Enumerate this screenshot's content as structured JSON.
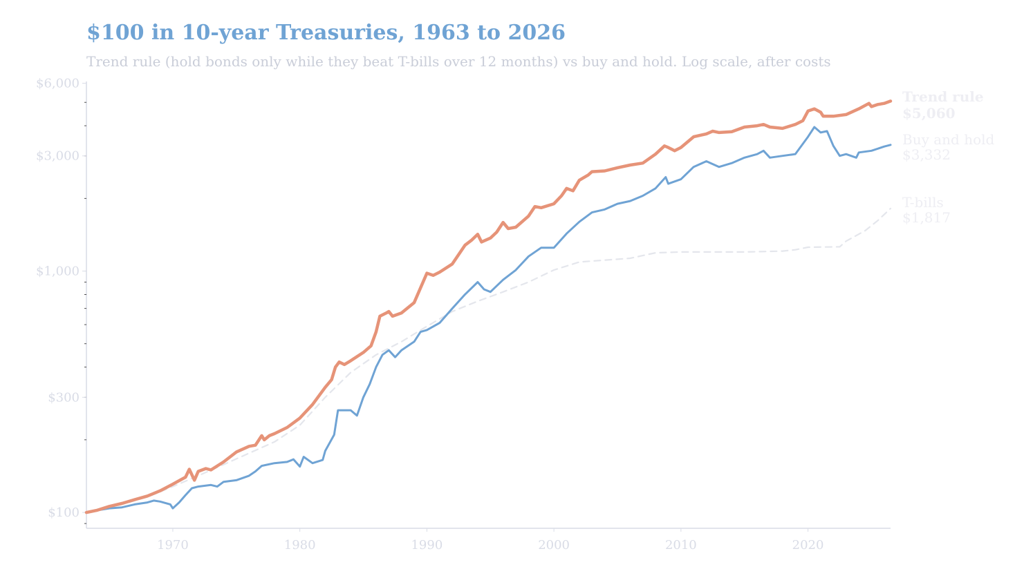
{
  "header": {
    "title": "$100 in 10-year Treasuries, 1963 to 2026",
    "subtitle": "Trend rule (hold bonds only while they beat T-bills over 12 months) vs buy and hold. Log scale, after costs"
  },
  "colors": {
    "trend": "#e69378",
    "buyhold": "#6fa3d4",
    "tbills": "#e4e6ec",
    "axis": "#d9dce6"
  },
  "chart_data": {
    "type": "line",
    "title": "$100 in 10-year Treasuries, 1963 to 2026",
    "subtitle": "Trend rule (hold bonds only while they beat T-bills over 12 months) vs buy and hold. Log scale, after costs",
    "xlim": [
      1963.2,
      2026.5
    ],
    "ylim": [
      86,
      6100
    ],
    "yscale": "log",
    "xticks": [
      {
        "value": 1970,
        "label": "1970"
      },
      {
        "value": 1980,
        "label": "1980"
      },
      {
        "value": 1990,
        "label": "1990"
      },
      {
        "value": 2000,
        "label": "2000"
      },
      {
        "value": 2010,
        "label": "2010"
      },
      {
        "value": 2020,
        "label": "2020"
      }
    ],
    "yticks": [
      {
        "value": 100,
        "label": "$100"
      },
      {
        "value": 300,
        "label": "$300"
      },
      {
        "value": 1000,
        "label": "$1,000"
      },
      {
        "value": 3000,
        "label": "$3,000"
      },
      {
        "value": 6000,
        "label": "$6,000"
      }
    ],
    "grid": false,
    "legend": "end-labels-right",
    "series": [
      {
        "key": "trend",
        "name": "Trend rule",
        "end_label": "$5,060",
        "points": [
          [
            1963.2,
            100
          ],
          [
            1964,
            102
          ],
          [
            1965,
            106
          ],
          [
            1966,
            109
          ],
          [
            1967,
            113
          ],
          [
            1968,
            117
          ],
          [
            1969,
            123
          ],
          [
            1970,
            131
          ],
          [
            1971,
            140
          ],
          [
            1971.3,
            151
          ],
          [
            1971.7,
            136
          ],
          [
            1972,
            148
          ],
          [
            1972.6,
            152
          ],
          [
            1973,
            150
          ],
          [
            1974,
            162
          ],
          [
            1975,
            178
          ],
          [
            1976,
            188
          ],
          [
            1976.5,
            190
          ],
          [
            1977,
            208
          ],
          [
            1977.2,
            200
          ],
          [
            1977.6,
            208
          ],
          [
            1978,
            212
          ],
          [
            1979,
            225
          ],
          [
            1980,
            246
          ],
          [
            1981,
            280
          ],
          [
            1982,
            330
          ],
          [
            1982.5,
            355
          ],
          [
            1982.8,
            400
          ],
          [
            1983.1,
            420
          ],
          [
            1983.5,
            410
          ],
          [
            1984,
            425
          ],
          [
            1985,
            460
          ],
          [
            1985.6,
            490
          ],
          [
            1986,
            560
          ],
          [
            1986.3,
            650
          ],
          [
            1986.8,
            670
          ],
          [
            1987,
            680
          ],
          [
            1987.3,
            650
          ],
          [
            1988,
            670
          ],
          [
            1989,
            740
          ],
          [
            1990,
            980
          ],
          [
            1990.5,
            960
          ],
          [
            1991,
            990
          ],
          [
            1992,
            1070
          ],
          [
            1993,
            1280
          ],
          [
            1993.5,
            1340
          ],
          [
            1994,
            1420
          ],
          [
            1994.3,
            1320
          ],
          [
            1995,
            1370
          ],
          [
            1995.5,
            1450
          ],
          [
            1996,
            1590
          ],
          [
            1996.4,
            1500
          ],
          [
            1997,
            1520
          ],
          [
            1998,
            1690
          ],
          [
            1998.5,
            1850
          ],
          [
            1999,
            1830
          ],
          [
            2000,
            1900
          ],
          [
            2000.6,
            2050
          ],
          [
            2001,
            2200
          ],
          [
            2001.5,
            2150
          ],
          [
            2002,
            2380
          ],
          [
            2002.7,
            2500
          ],
          [
            2003,
            2580
          ],
          [
            2004,
            2600
          ],
          [
            2005,
            2680
          ],
          [
            2006,
            2750
          ],
          [
            2007,
            2800
          ],
          [
            2008,
            3050
          ],
          [
            2008.7,
            3300
          ],
          [
            2009,
            3250
          ],
          [
            2009.5,
            3150
          ],
          [
            2010,
            3250
          ],
          [
            2011,
            3600
          ],
          [
            2012,
            3700
          ],
          [
            2012.5,
            3800
          ],
          [
            2013,
            3750
          ],
          [
            2014,
            3780
          ],
          [
            2015,
            3950
          ],
          [
            2016,
            4000
          ],
          [
            2016.5,
            4050
          ],
          [
            2017,
            3950
          ],
          [
            2018,
            3900
          ],
          [
            2019,
            4050
          ],
          [
            2019.6,
            4200
          ],
          [
            2020,
            4600
          ],
          [
            2020.5,
            4700
          ],
          [
            2021,
            4550
          ],
          [
            2021.2,
            4380
          ],
          [
            2022,
            4380
          ],
          [
            2023,
            4450
          ],
          [
            2024,
            4700
          ],
          [
            2024.8,
            4950
          ],
          [
            2025,
            4800
          ],
          [
            2025.5,
            4900
          ],
          [
            2026,
            4950
          ],
          [
            2026.5,
            5060
          ]
        ]
      },
      {
        "key": "buyhold",
        "name": "Buy and hold",
        "end_label": "$3,332",
        "points": [
          [
            1963.2,
            100
          ],
          [
            1964,
            102
          ],
          [
            1965,
            104
          ],
          [
            1966,
            105
          ],
          [
            1967,
            108
          ],
          [
            1968,
            110
          ],
          [
            1968.5,
            112
          ],
          [
            1969,
            111
          ],
          [
            1969.8,
            108
          ],
          [
            1970,
            104
          ],
          [
            1970.5,
            110
          ],
          [
            1971,
            118
          ],
          [
            1971.5,
            126
          ],
          [
            1972,
            128
          ],
          [
            1973,
            130
          ],
          [
            1973.5,
            128
          ],
          [
            1974,
            134
          ],
          [
            1975,
            136
          ],
          [
            1976,
            142
          ],
          [
            1976.5,
            148
          ],
          [
            1977,
            156
          ],
          [
            1978,
            160
          ],
          [
            1979,
            162
          ],
          [
            1979.5,
            166
          ],
          [
            1980,
            155
          ],
          [
            1980.3,
            170
          ],
          [
            1981,
            160
          ],
          [
            1981.8,
            165
          ],
          [
            1982,
            180
          ],
          [
            1982.7,
            210
          ],
          [
            1983,
            265
          ],
          [
            1984,
            265
          ],
          [
            1984.5,
            252
          ],
          [
            1985,
            300
          ],
          [
            1985.5,
            340
          ],
          [
            1986,
            400
          ],
          [
            1986.5,
            450
          ],
          [
            1987,
            470
          ],
          [
            1987.5,
            440
          ],
          [
            1988,
            470
          ],
          [
            1989,
            510
          ],
          [
            1989.5,
            560
          ],
          [
            1990,
            570
          ],
          [
            1991,
            610
          ],
          [
            1992,
            700
          ],
          [
            1993,
            800
          ],
          [
            1994,
            900
          ],
          [
            1994.5,
            840
          ],
          [
            1995,
            820
          ],
          [
            1996,
            920
          ],
          [
            1997,
            1010
          ],
          [
            1998,
            1150
          ],
          [
            1999,
            1250
          ],
          [
            2000,
            1250
          ],
          [
            2001,
            1430
          ],
          [
            2002,
            1600
          ],
          [
            2003,
            1750
          ],
          [
            2004,
            1800
          ],
          [
            2005,
            1900
          ],
          [
            2006,
            1950
          ],
          [
            2007,
            2050
          ],
          [
            2008,
            2200
          ],
          [
            2008.8,
            2450
          ],
          [
            2009,
            2300
          ],
          [
            2010,
            2400
          ],
          [
            2011,
            2700
          ],
          [
            2012,
            2850
          ],
          [
            2013,
            2700
          ],
          [
            2014,
            2800
          ],
          [
            2015,
            2950
          ],
          [
            2016,
            3050
          ],
          [
            2016.5,
            3150
          ],
          [
            2017,
            2950
          ],
          [
            2018,
            3000
          ],
          [
            2019,
            3050
          ],
          [
            2020,
            3600
          ],
          [
            2020.5,
            3950
          ],
          [
            2021,
            3750
          ],
          [
            2021.5,
            3800
          ],
          [
            2022,
            3300
          ],
          [
            2022.5,
            3000
          ],
          [
            2023,
            3050
          ],
          [
            2023.8,
            2950
          ],
          [
            2024,
            3100
          ],
          [
            2025,
            3150
          ],
          [
            2026,
            3280
          ],
          [
            2026.5,
            3332
          ]
        ]
      },
      {
        "key": "tbills",
        "name": "T-bills",
        "end_label": "$1,817",
        "points": [
          [
            1963.2,
            100
          ],
          [
            1966,
            108
          ],
          [
            1968,
            116
          ],
          [
            1970,
            128
          ],
          [
            1972,
            142
          ],
          [
            1974,
            158
          ],
          [
            1976,
            176
          ],
          [
            1978,
            196
          ],
          [
            1980,
            230
          ],
          [
            1982,
            300
          ],
          [
            1984,
            380
          ],
          [
            1986,
            450
          ],
          [
            1988,
            510
          ],
          [
            1990,
            590
          ],
          [
            1992,
            680
          ],
          [
            1994,
            750
          ],
          [
            1996,
            820
          ],
          [
            1998,
            900
          ],
          [
            2000,
            1010
          ],
          [
            2002,
            1090
          ],
          [
            2004,
            1110
          ],
          [
            2006,
            1130
          ],
          [
            2008,
            1190
          ],
          [
            2010,
            1200
          ],
          [
            2015,
            1200
          ],
          [
            2018,
            1210
          ],
          [
            2019,
            1225
          ],
          [
            2020,
            1255
          ],
          [
            2022.5,
            1260
          ],
          [
            2023,
            1330
          ],
          [
            2024.5,
            1470
          ],
          [
            2025.5,
            1620
          ],
          [
            2026.5,
            1817
          ]
        ]
      }
    ]
  }
}
